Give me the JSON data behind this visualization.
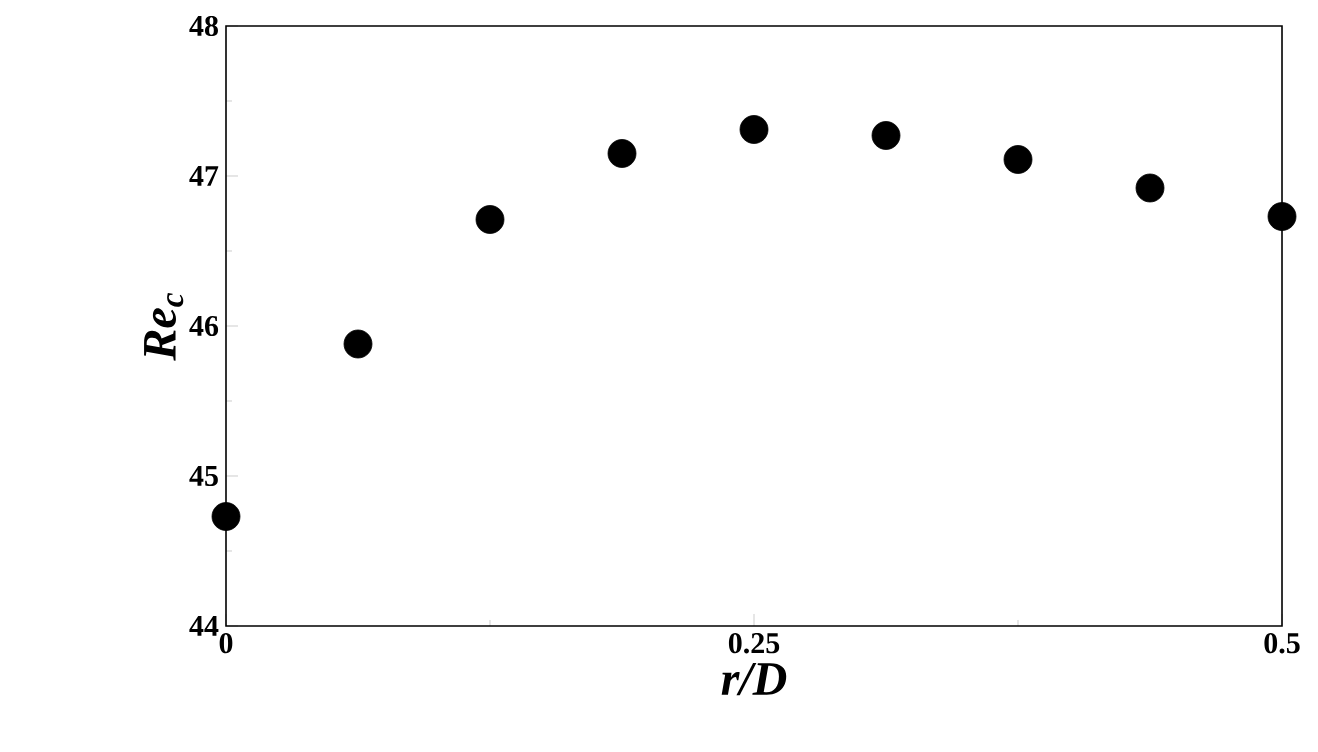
{
  "chart_data": {
    "type": "scatter",
    "xlabel": "r/D",
    "ylabel": "Re$_{c}$",
    "x": [
      0,
      0.0625,
      0.125,
      0.1875,
      0.25,
      0.3125,
      0.375,
      0.4375,
      0.5
    ],
    "values": [
      44.73,
      45.88,
      46.71,
      47.15,
      47.31,
      47.27,
      47.11,
      46.92,
      46.73
    ],
    "color": "#000000",
    "marker": "circle",
    "xlim": [
      0,
      0.5
    ],
    "xticks": [
      0,
      0.25,
      0.5
    ],
    "ylim": [
      44,
      48
    ],
    "yticks": [
      44,
      45,
      46,
      47,
      48
    ],
    "grid": false
  }
}
